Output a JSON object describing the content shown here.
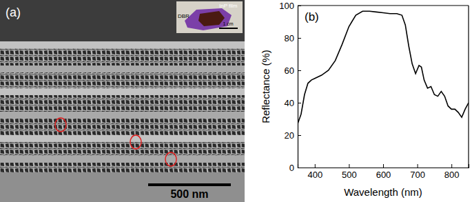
{
  "panel_a": {
    "label": "(a)",
    "scale_bar": "500 nm",
    "inset": {
      "labels": [
        "InP film",
        "DBR"
      ],
      "scale_bar": "1 cm"
    }
  },
  "chart_data": {
    "type": "line",
    "annotations": [
      "(b)"
    ],
    "x_label": "Wavelength (nm)",
    "y_label": "Reflectance (%)",
    "xlim": [
      350,
      850
    ],
    "xticks": [
      400,
      500,
      600,
      700,
      800
    ],
    "ylim": [
      0,
      100
    ],
    "yticks": [
      0,
      20,
      40,
      60,
      80,
      100
    ],
    "x": [
      350,
      360,
      370,
      380,
      390,
      400,
      420,
      440,
      460,
      480,
      500,
      520,
      540,
      560,
      580,
      600,
      620,
      640,
      655,
      665,
      675,
      685,
      695,
      705,
      712,
      720,
      730,
      740,
      750,
      760,
      770,
      780,
      790,
      800,
      810,
      820,
      830,
      840,
      850
    ],
    "series": [
      {
        "color": "#000000",
        "values": [
          27,
          33,
          45,
          52,
          54,
          55,
          57,
          60,
          66,
          76,
          87,
          94,
          96.5,
          96.5,
          96,
          95.5,
          95,
          95,
          94,
          88,
          75,
          64,
          58,
          63,
          62,
          54,
          49,
          50,
          45,
          44,
          47,
          44,
          38,
          36,
          36,
          34,
          31,
          36,
          40
        ]
      }
    ]
  }
}
